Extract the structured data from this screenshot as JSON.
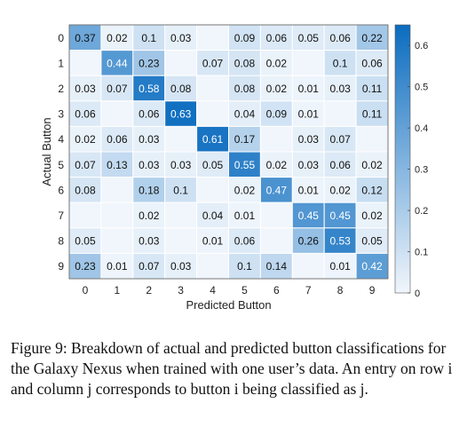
{
  "chart_data": {
    "type": "heatmap",
    "title": "",
    "xlabel": "Predicted Button",
    "ylabel": "Actual Button",
    "x_categories": [
      "0",
      "1",
      "2",
      "3",
      "4",
      "5",
      "6",
      "7",
      "8",
      "9"
    ],
    "y_categories": [
      "0",
      "1",
      "2",
      "3",
      "4",
      "5",
      "6",
      "7",
      "8",
      "9"
    ],
    "values": [
      [
        "0.37",
        "0.02",
        "0.1",
        "0.03",
        null,
        "0.09",
        "0.06",
        "0.05",
        "0.06",
        "0.22"
      ],
      [
        null,
        "0.44",
        "0.23",
        null,
        "0.07",
        "0.08",
        "0.02",
        null,
        "0.1",
        "0.06"
      ],
      [
        "0.03",
        "0.07",
        "0.58",
        "0.08",
        null,
        "0.08",
        "0.02",
        "0.01",
        "0.03",
        "0.11"
      ],
      [
        "0.06",
        null,
        "0.06",
        "0.63",
        null,
        "0.04",
        "0.09",
        "0.01",
        null,
        "0.11"
      ],
      [
        "0.02",
        "0.06",
        "0.03",
        null,
        "0.61",
        "0.17",
        null,
        "0.03",
        "0.07",
        null
      ],
      [
        "0.07",
        "0.13",
        "0.03",
        "0.03",
        "0.05",
        "0.55",
        "0.02",
        "0.03",
        "0.06",
        "0.02"
      ],
      [
        "0.08",
        null,
        "0.18",
        "0.1",
        null,
        "0.02",
        "0.47",
        "0.01",
        "0.02",
        "0.12"
      ],
      [
        null,
        null,
        "0.02",
        null,
        "0.04",
        "0.01",
        null,
        "0.45",
        "0.45",
        "0.02"
      ],
      [
        "0.05",
        null,
        "0.03",
        null,
        "0.01",
        "0.06",
        null,
        "0.26",
        "0.53",
        "0.05"
      ],
      [
        "0.23",
        "0.01",
        "0.07",
        "0.03",
        null,
        "0.1",
        "0.14",
        null,
        "0.01",
        "0.42"
      ]
    ],
    "colorbar": {
      "range": [
        0,
        0.65
      ],
      "ticks": [
        "0",
        "0.1",
        "0.2",
        "0.3",
        "0.4",
        "0.5",
        "0.6"
      ],
      "low_color": "#f1f6fc",
      "high_color": "#0b6cbf"
    },
    "grid": true,
    "legend": "colorbar-right"
  },
  "caption": {
    "text": "Figure 9: Breakdown of actual and predicted button classifications for the Galaxy Nexus when trained with one user’s data. An entry on row i and column j corresponds to button i being classified as j."
  }
}
